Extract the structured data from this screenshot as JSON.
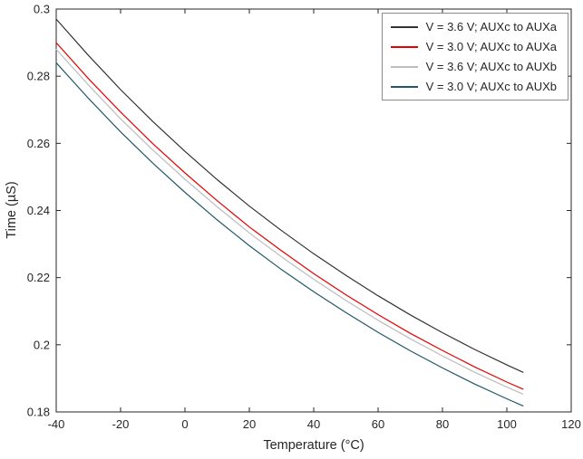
{
  "chart_data": {
    "type": "line",
    "title": "",
    "xlabel": "Temperature (°C)",
    "ylabel": "Time (µS)",
    "xlim": [
      -40,
      120
    ],
    "ylim": [
      0.18,
      0.3
    ],
    "xticks": [
      -40,
      -20,
      0,
      20,
      40,
      60,
      80,
      100,
      120
    ],
    "yticks": [
      0.18,
      0.2,
      0.22,
      0.24,
      0.26,
      0.28,
      0.3
    ],
    "xtick_labels": [
      "-40",
      "-20",
      "0",
      "20",
      "40",
      "60",
      "80",
      "100",
      "120"
    ],
    "ytick_labels": [
      "0.18",
      "0.2",
      "0.22",
      "0.24",
      "0.26",
      "0.28",
      "0.3"
    ],
    "grid": false,
    "legend_position": "top-right",
    "axis_color": "#262626",
    "x": [
      -40,
      -30,
      -20,
      -10,
      0,
      10,
      20,
      30,
      40,
      50,
      60,
      70,
      80,
      90,
      100,
      105
    ],
    "series": [
      {
        "name": "V = 3.6 V; AUXc to AUXa",
        "color": "#333333",
        "values": [
          0.297,
          0.2862,
          0.276,
          0.2665,
          0.2576,
          0.2492,
          0.2413,
          0.234,
          0.2271,
          0.2207,
          0.2146,
          0.2089,
          0.2036,
          0.1986,
          0.194,
          0.1918
        ]
      },
      {
        "name": "V = 3.0 V; AUXc to AUXa",
        "color": "#e60000",
        "values": [
          0.29,
          0.2793,
          0.2693,
          0.2599,
          0.2512,
          0.2429,
          0.2351,
          0.228,
          0.2212,
          0.2149,
          0.209,
          0.2034,
          0.1983,
          0.1934,
          0.1889,
          0.1868
        ]
      },
      {
        "name": "V = 3.6 V; AUXc to AUXb",
        "color": "#bdbdbd",
        "values": [
          0.288,
          0.2774,
          0.2673,
          0.258,
          0.2493,
          0.2411,
          0.2333,
          0.2262,
          0.2195,
          0.2132,
          0.2073,
          0.2018,
          0.1967,
          0.1918,
          0.1874,
          0.1853
        ]
      },
      {
        "name": "V = 3.0 V; AUXc to AUXb",
        "color": "#215868",
        "values": [
          0.284,
          0.2734,
          0.2634,
          0.2541,
          0.2454,
          0.2372,
          0.2295,
          0.2224,
          0.2158,
          0.2096,
          0.2037,
          0.1982,
          0.1931,
          0.1883,
          0.1839,
          0.1818
        ]
      }
    ]
  }
}
